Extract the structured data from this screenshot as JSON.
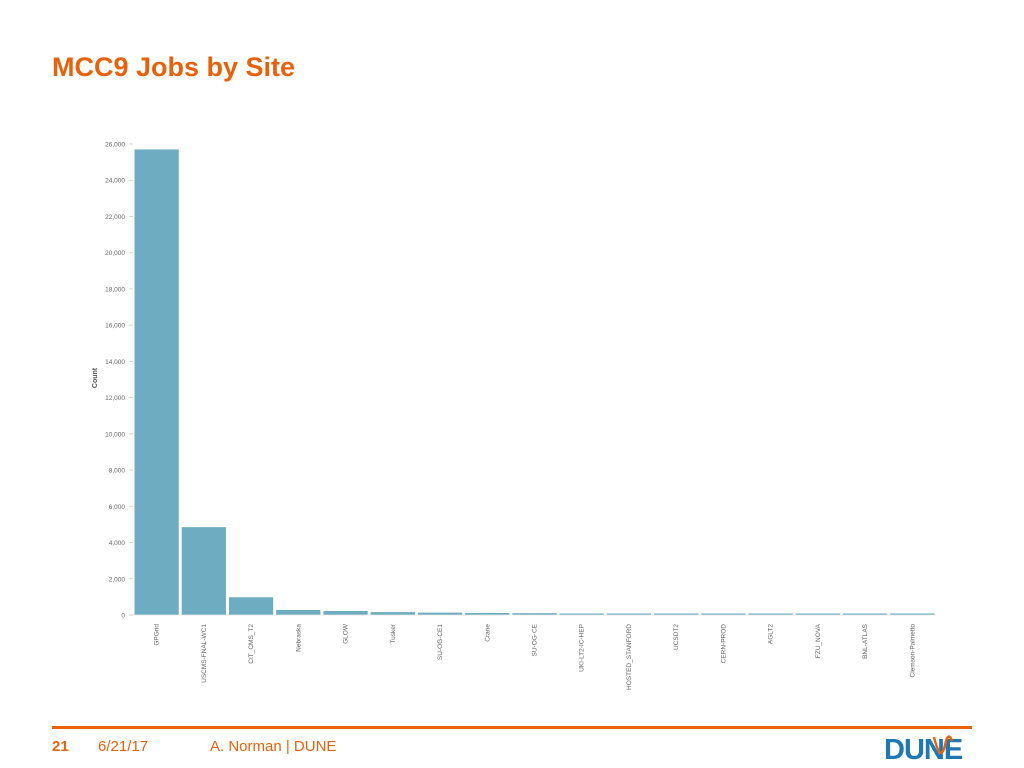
{
  "slide": {
    "title": "MCC9 Jobs by Site"
  },
  "footer": {
    "page_number": "21",
    "date": "6/21/17",
    "author": "A. Norman | DUNE"
  },
  "logo": {
    "text": "DUNE",
    "color": "#1f77b4",
    "accent": "#e8620c"
  },
  "chart_data": {
    "type": "bar",
    "ylabel": "Count",
    "xlabel": "",
    "ylim": [
      0,
      26000
    ],
    "yticks": [
      0,
      2000,
      4000,
      6000,
      8000,
      10000,
      12000,
      14000,
      16000,
      18000,
      20000,
      22000,
      24000,
      26000
    ],
    "ytick_labels": [
      "0",
      "2,000",
      "4,000",
      "6,000",
      "8,000",
      "10,000",
      "12,000",
      "14,000",
      "16,000",
      "18,000",
      "20,000",
      "22,000",
      "24,000",
      "26,000"
    ],
    "categories": [
      "GPGrid",
      "USCMS-FNAL-WC1",
      "CIT_CMS_T2",
      "Nebraska",
      "GLOW",
      "Tusker",
      "SU-OG-CE1",
      "Crane",
      "SU-OG-CE",
      "UKI-LT2-IC-HEP",
      "HOSTED_STANFORD",
      "UCSDT2",
      "CERN-PROD",
      "AGLT2",
      "FZU_NOVA",
      "BNL-ATLAS",
      "Clemson-Palmetto"
    ],
    "values": [
      25700,
      4850,
      980,
      280,
      220,
      160,
      130,
      110,
      100,
      80,
      70,
      60,
      50,
      30,
      25,
      15,
      10
    ],
    "bar_color": "#6eacc1",
    "grid": false
  }
}
